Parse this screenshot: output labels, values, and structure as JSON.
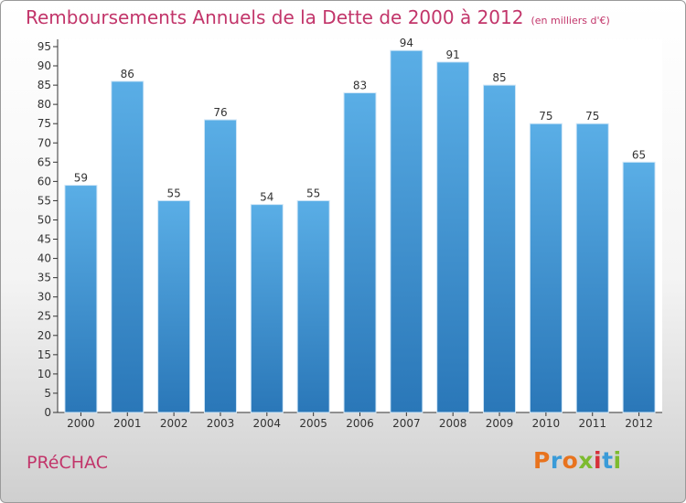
{
  "header": {
    "title": "Remboursements Annuels de la Dette de 2000 à 2012",
    "unit": "(en milliers d'€)"
  },
  "footer": {
    "city": "PRéCHAC",
    "logo_text": "Proxiti"
  },
  "colors": {
    "accent": "#c2356a",
    "bar_top": "#5aaee6",
    "bar_bottom": "#2a77b8",
    "logo_letters": [
      "#e8731e",
      "#3a9bd8",
      "#e8731e",
      "#7dbb2f",
      "#d6303a",
      "#3a9bd8",
      "#7dbb2f"
    ]
  },
  "chart_data": {
    "type": "bar",
    "title": "Remboursements Annuels de la Dette de 2000 à 2012",
    "subtitle": "(en milliers d'€)",
    "xlabel": "",
    "ylabel": "",
    "categories": [
      "2000",
      "2001",
      "2002",
      "2003",
      "2004",
      "2005",
      "2006",
      "2007",
      "2008",
      "2009",
      "2010",
      "2011",
      "2012"
    ],
    "values": [
      59,
      86,
      55,
      76,
      54,
      55,
      83,
      94,
      91,
      85,
      75,
      75,
      65
    ],
    "ylim": [
      0,
      95
    ],
    "yticks": [
      0,
      5,
      10,
      15,
      20,
      25,
      30,
      35,
      40,
      45,
      50,
      55,
      60,
      65,
      70,
      75,
      80,
      85,
      90,
      95
    ],
    "grid": false,
    "data_labels": true
  }
}
